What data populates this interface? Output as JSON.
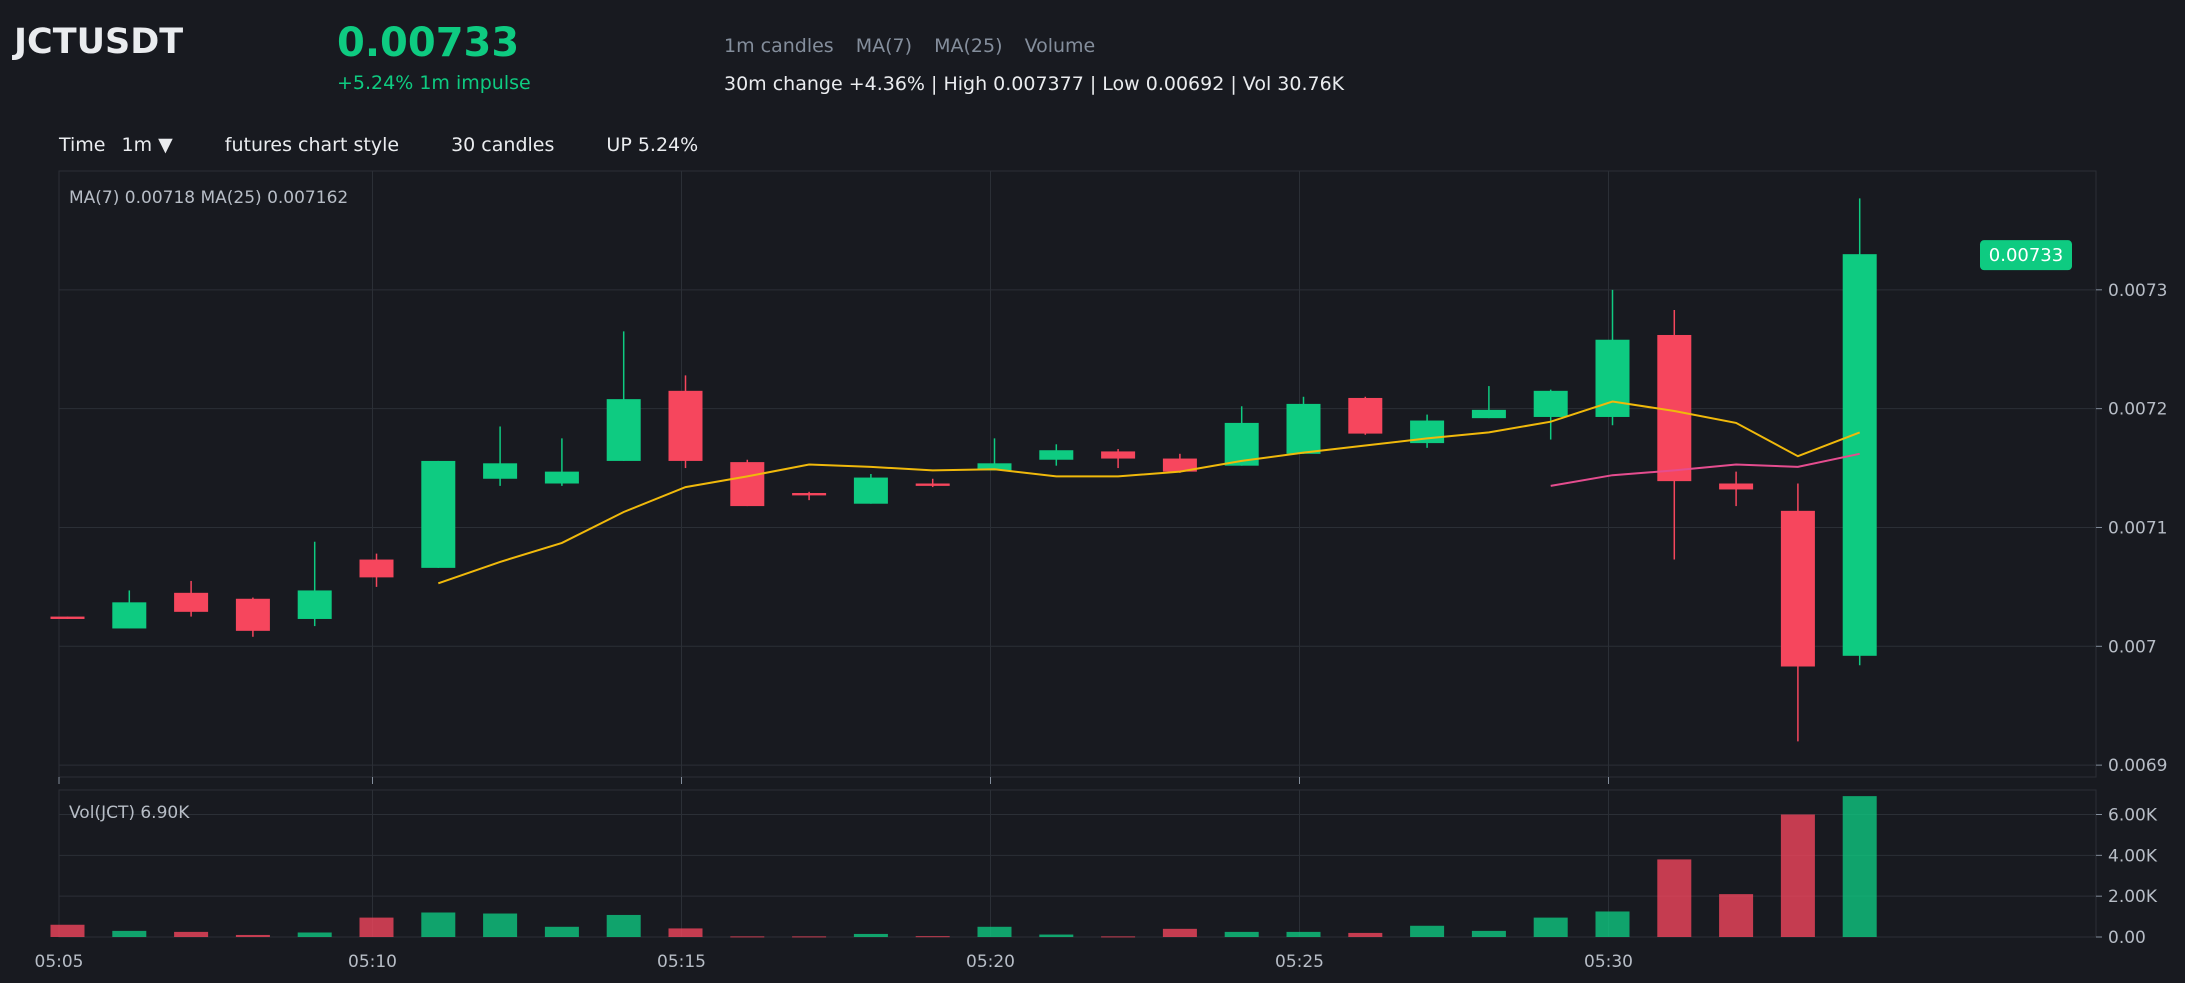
{
  "header": {
    "symbol": "JCTUSDT",
    "price": "0.00733",
    "change": "+5.24% 1m impulse",
    "indicators": [
      "1m candles",
      "MA(7)",
      "MA(25)",
      "Volume"
    ],
    "stats": "30m change +4.36% | High 0.007377 | Low 0.00692 | Vol 30.76K"
  },
  "toolbar": {
    "time_label": "Time",
    "interval": "1m ▼",
    "style": "futures chart style",
    "candles": "30 candles",
    "direction": "UP 5.24%"
  },
  "colors": {
    "up": "#0ecb81",
    "down": "#f6465d",
    "ma7": "#f0b90b",
    "ma25": "#e54d8f",
    "background": "#181a20"
  },
  "chart_data": {
    "type": "candlestick",
    "symbol": "JCTUSDT",
    "interval": "1m",
    "legend_text": "MA(7) 0.00718    MA(25) 0.007162",
    "volume_legend": "Vol(JCT) 6.90K",
    "last_price_label": "0.00733",
    "price_ticks": [
      "0.0073",
      "0.0072",
      "0.0071",
      "0.007",
      "0.0069"
    ],
    "price_tick_values": [
      0.0073,
      0.0072,
      0.0071,
      0.007,
      0.0069
    ],
    "ylim": [
      0.00689,
      0.0074
    ],
    "volume_ticks": [
      "6.00K",
      "4.00K",
      "2.00K",
      "0.00"
    ],
    "volume_tick_values": [
      6000,
      4000,
      2000,
      0
    ],
    "volume_ylim": [
      0,
      7200
    ],
    "time_ticks": [
      "05:05",
      "05:10",
      "05:15",
      "05:20",
      "05:25",
      "05:30"
    ],
    "time_tick_index": [
      0,
      5,
      10,
      15,
      20,
      25
    ],
    "grid": true,
    "candles": [
      {
        "t": "05:05",
        "o": 0.007025,
        "h": 0.007025,
        "l": 0.007023,
        "c": 0.007023,
        "v": 600
      },
      {
        "t": "05:06",
        "o": 0.007015,
        "h": 0.007047,
        "l": 0.007015,
        "c": 0.007037,
        "v": 300
      },
      {
        "t": "05:07",
        "o": 0.007045,
        "h": 0.007055,
        "l": 0.007025,
        "c": 0.007029,
        "v": 250
      },
      {
        "t": "05:08",
        "o": 0.00704,
        "h": 0.007041,
        "l": 0.007008,
        "c": 0.007013,
        "v": 100
      },
      {
        "t": "05:09",
        "o": 0.007023,
        "h": 0.007088,
        "l": 0.007017,
        "c": 0.007047,
        "v": 220
      },
      {
        "t": "05:10",
        "o": 0.007073,
        "h": 0.007078,
        "l": 0.00705,
        "c": 0.007058,
        "v": 950
      },
      {
        "t": "05:11",
        "o": 0.007066,
        "h": 0.007156,
        "l": 0.007066,
        "c": 0.007156,
        "v": 1200
      },
      {
        "t": "05:12",
        "o": 0.007141,
        "h": 0.007185,
        "l": 0.007135,
        "c": 0.007154,
        "v": 1150
      },
      {
        "t": "05:13",
        "o": 0.007137,
        "h": 0.007175,
        "l": 0.007135,
        "c": 0.007147,
        "v": 500
      },
      {
        "t": "05:14",
        "o": 0.007156,
        "h": 0.007265,
        "l": 0.007156,
        "c": 0.007208,
        "v": 1080
      },
      {
        "t": "05:15",
        "o": 0.007215,
        "h": 0.007228,
        "l": 0.00715,
        "c": 0.007156,
        "v": 420
      },
      {
        "t": "05:16",
        "o": 0.007155,
        "h": 0.007157,
        "l": 0.007118,
        "c": 0.007118,
        "v": 30
      },
      {
        "t": "05:17",
        "o": 0.007129,
        "h": 0.00713,
        "l": 0.007123,
        "c": 0.007127,
        "v": 30
      },
      {
        "t": "05:18",
        "o": 0.00712,
        "h": 0.007145,
        "l": 0.00712,
        "c": 0.007142,
        "v": 150
      },
      {
        "t": "05:19",
        "o": 0.007137,
        "h": 0.007141,
        "l": 0.007134,
        "c": 0.007135,
        "v": 40
      },
      {
        "t": "05:20",
        "o": 0.007148,
        "h": 0.007175,
        "l": 0.007148,
        "c": 0.007154,
        "v": 500
      },
      {
        "t": "05:21",
        "o": 0.007157,
        "h": 0.00717,
        "l": 0.007152,
        "c": 0.007165,
        "v": 120
      },
      {
        "t": "05:22",
        "o": 0.007164,
        "h": 0.007166,
        "l": 0.00715,
        "c": 0.007158,
        "v": 30
      },
      {
        "t": "05:23",
        "o": 0.007158,
        "h": 0.007162,
        "l": 0.007146,
        "c": 0.007147,
        "v": 400
      },
      {
        "t": "05:24",
        "o": 0.007152,
        "h": 0.007202,
        "l": 0.007152,
        "c": 0.007188,
        "v": 250
      },
      {
        "t": "05:25",
        "o": 0.007162,
        "h": 0.00721,
        "l": 0.007162,
        "c": 0.007204,
        "v": 250
      },
      {
        "t": "05:26",
        "o": 0.007209,
        "h": 0.00721,
        "l": 0.007178,
        "c": 0.007179,
        "v": 200
      },
      {
        "t": "05:27",
        "o": 0.007171,
        "h": 0.007195,
        "l": 0.007167,
        "c": 0.00719,
        "v": 550
      },
      {
        "t": "05:28",
        "o": 0.007192,
        "h": 0.007219,
        "l": 0.007192,
        "c": 0.007199,
        "v": 300
      },
      {
        "t": "05:29",
        "o": 0.007193,
        "h": 0.007216,
        "l": 0.007174,
        "c": 0.007215,
        "v": 950
      },
      {
        "t": "05:30",
        "o": 0.007193,
        "h": 0.0073,
        "l": 0.007186,
        "c": 0.007258,
        "v": 1250
      },
      {
        "t": "05:31",
        "o": 0.007262,
        "h": 0.007283,
        "l": 0.007073,
        "c": 0.007139,
        "v": 3800
      },
      {
        "t": "05:32",
        "o": 0.007137,
        "h": 0.007147,
        "l": 0.007118,
        "c": 0.007132,
        "v": 2100
      },
      {
        "t": "05:33",
        "o": 0.007114,
        "h": 0.007137,
        "l": 0.00692,
        "c": 0.006983,
        "v": 6000
      },
      {
        "t": "05:34",
        "o": 0.006992,
        "h": 0.007377,
        "l": 0.006984,
        "c": 0.00733,
        "v": 6900
      }
    ],
    "ma7": [
      null,
      null,
      null,
      null,
      null,
      null,
      0.007053,
      0.007071,
      0.007087,
      0.007113,
      0.007134,
      0.007143,
      0.007153,
      0.007151,
      0.007148,
      0.007149,
      0.007143,
      0.007143,
      0.007147,
      0.007156,
      0.007163,
      0.007169,
      0.007175,
      0.00718,
      0.007189,
      0.007206,
      0.007198,
      0.007188,
      0.00716,
      0.00718
    ],
    "ma25": [
      null,
      null,
      null,
      null,
      null,
      null,
      null,
      null,
      null,
      null,
      null,
      null,
      null,
      null,
      null,
      null,
      null,
      null,
      null,
      null,
      null,
      null,
      null,
      null,
      0.007135,
      0.007144,
      0.007148,
      0.007153,
      0.007151,
      0.007162
    ]
  }
}
